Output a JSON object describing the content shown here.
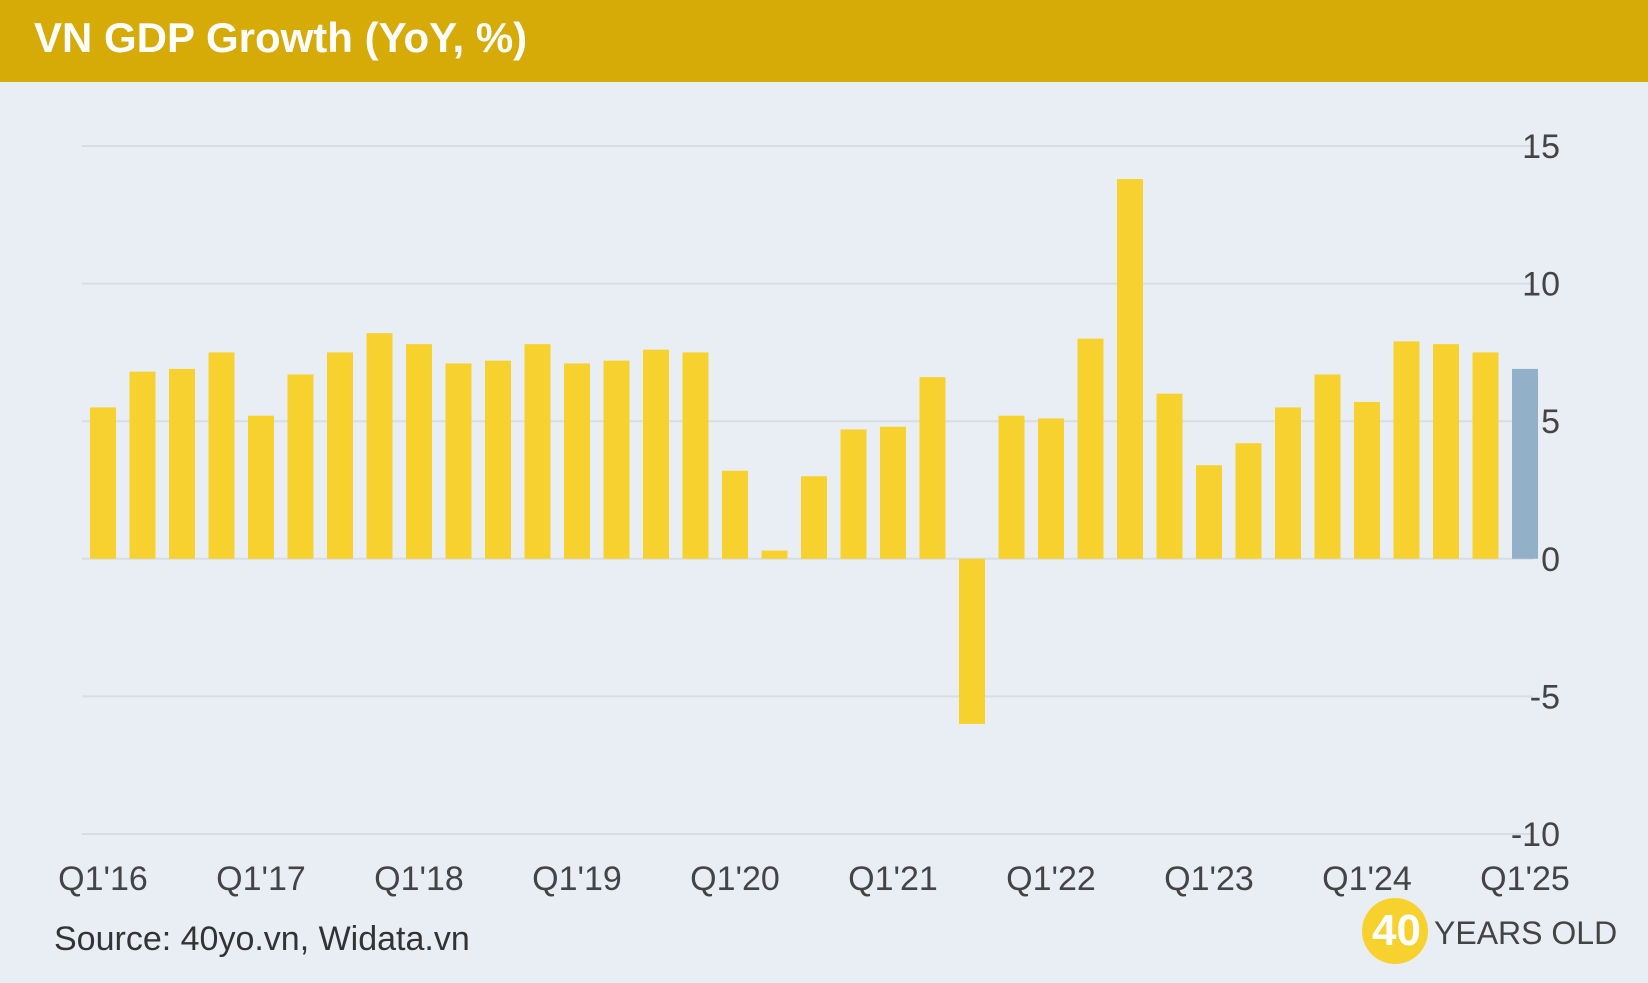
{
  "title": "VN GDP Growth (YoY, %)",
  "source": "Source: 40yo.vn, Widata.vn",
  "brand": {
    "number": "40",
    "text": "YEARS OLD"
  },
  "colors": {
    "header": "#d6ab07",
    "background": "#e9eef4",
    "bar": "#f7d22e",
    "bar_latest": "#93b0c9",
    "grid": "#d7dde4",
    "tick": "#444444"
  },
  "chart_data": {
    "type": "bar",
    "title": "VN GDP Growth (YoY, %)",
    "xlabel": "",
    "ylabel": "",
    "ylim": [
      -10,
      15
    ],
    "yticks": [
      15,
      10,
      5,
      0,
      -5,
      -10
    ],
    "y_axis_position": "right",
    "grid": true,
    "categories": [
      "Q1'16",
      "Q2'16",
      "Q3'16",
      "Q4'16",
      "Q1'17",
      "Q2'17",
      "Q3'17",
      "Q4'17",
      "Q1'18",
      "Q2'18",
      "Q3'18",
      "Q4'18",
      "Q1'19",
      "Q2'19",
      "Q3'19",
      "Q4'19",
      "Q1'20",
      "Q2'20",
      "Q3'20",
      "Q4'20",
      "Q1'21",
      "Q2'21",
      "Q3'21",
      "Q4'21",
      "Q1'22",
      "Q2'22",
      "Q3'22",
      "Q4'22",
      "Q1'23",
      "Q2'23",
      "Q3'23",
      "Q4'23",
      "Q1'24",
      "Q2'24",
      "Q3'24",
      "Q4'24",
      "Q1'25"
    ],
    "xtick_labels": [
      "Q1'16",
      "Q1'17",
      "Q1'18",
      "Q1'19",
      "Q1'20",
      "Q1'21",
      "Q1'22",
      "Q1'23",
      "Q1'24",
      "Q1'25"
    ],
    "values": [
      5.5,
      6.8,
      6.9,
      7.5,
      5.2,
      6.7,
      7.5,
      8.2,
      7.8,
      7.1,
      7.2,
      7.8,
      7.1,
      7.2,
      7.6,
      7.5,
      3.2,
      0.3,
      3.0,
      4.7,
      4.8,
      6.6,
      -6.0,
      5.2,
      5.1,
      8.0,
      13.8,
      6.0,
      3.4,
      4.2,
      5.5,
      6.7,
      5.7,
      7.9,
      7.8,
      7.5,
      6.9
    ],
    "highlight_last": true
  }
}
